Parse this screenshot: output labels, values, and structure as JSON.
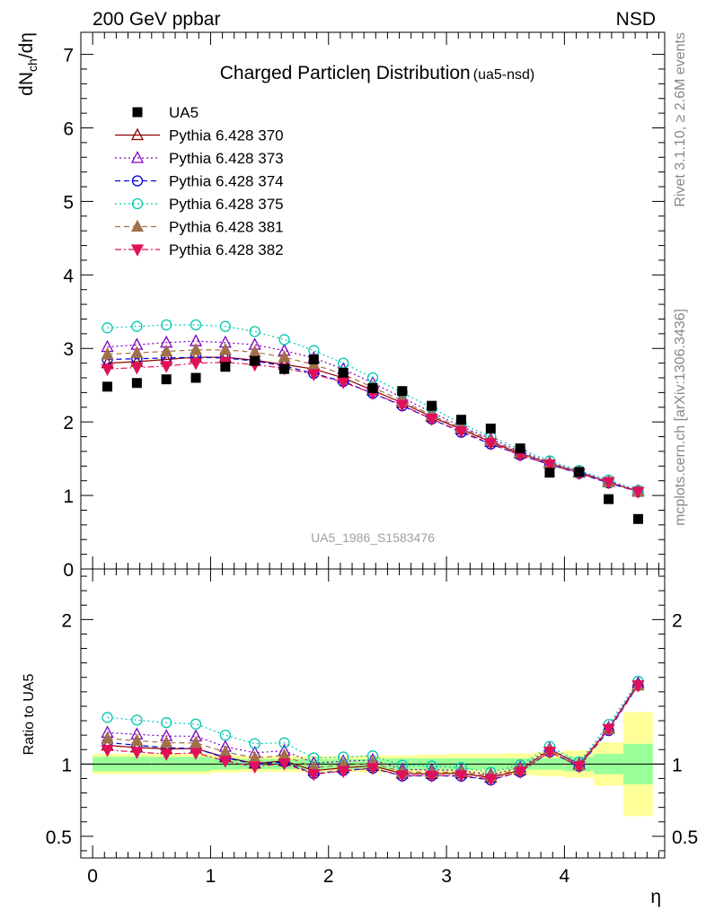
{
  "header": {
    "left": "200 GeV ppbar",
    "right": "NSD"
  },
  "side_labels": {
    "rivet": "Rivet 3.1.10, ≥ 2.6M events",
    "mcplots": "mcplots.cern.ch [arXiv:1306.3436]"
  },
  "chart_data": [
    {
      "type": "scatter",
      "title_main": "Charged Particleη Distribution",
      "title_sub": "(ua5-nsd)",
      "ylabel": "dN",
      "ylabel_sub": "ch",
      "ylabel_rest": "/dη",
      "watermark": "UA5_1986_S1583476",
      "ylim": [
        0,
        7.3
      ],
      "yticks": [
        0,
        1,
        2,
        3,
        4,
        5,
        6,
        7
      ],
      "ytick_labels": [
        "0",
        "1",
        "2",
        "3",
        "4",
        "5",
        "6",
        "7"
      ],
      "legend_position": "top-left",
      "x": [
        0.125,
        0.375,
        0.625,
        0.875,
        1.125,
        1.375,
        1.625,
        1.875,
        2.125,
        2.375,
        2.625,
        2.875,
        3.125,
        3.375,
        3.625,
        3.875,
        4.125,
        4.375,
        4.625
      ],
      "data": {
        "name": "UA5",
        "values": [
          2.48,
          2.53,
          2.58,
          2.6,
          2.75,
          2.83,
          2.72,
          2.85,
          2.67,
          2.46,
          2.42,
          2.22,
          2.03,
          1.91,
          1.64,
          1.31,
          1.32,
          0.95,
          0.68
        ]
      },
      "series": [
        {
          "name": "Pythia 6.428 370",
          "color": "#8b0000",
          "dash": "solid",
          "marker": "triangle-up-open",
          "values": [
            2.8,
            2.82,
            2.85,
            2.88,
            2.88,
            2.84,
            2.78,
            2.72,
            2.6,
            2.43,
            2.26,
            2.07,
            1.9,
            1.73,
            1.57,
            1.44,
            1.32,
            1.18,
            1.06
          ]
        },
        {
          "name": "Pythia 6.428 373",
          "color": "#8000c0",
          "dash": "dotted",
          "marker": "triangle-up-open",
          "values": [
            3.02,
            3.05,
            3.08,
            3.1,
            3.08,
            3.05,
            2.97,
            2.87,
            2.72,
            2.53,
            2.33,
            2.13,
            1.94,
            1.77,
            1.6,
            1.45,
            1.32,
            1.19,
            1.06
          ]
        },
        {
          "name": "Pythia 6.428 374",
          "color": "#0000e0",
          "dash": "dashed",
          "marker": "circle-open",
          "values": [
            2.85,
            2.86,
            2.87,
            2.88,
            2.87,
            2.83,
            2.76,
            2.66,
            2.55,
            2.39,
            2.22,
            2.04,
            1.86,
            1.7,
            1.55,
            1.42,
            1.3,
            1.17,
            1.05
          ]
        },
        {
          "name": "Pythia 6.428 375",
          "color": "#00c8b0",
          "dash": "dotted",
          "marker": "circle-open",
          "values": [
            3.28,
            3.3,
            3.32,
            3.32,
            3.3,
            3.23,
            3.12,
            2.97,
            2.8,
            2.6,
            2.4,
            2.19,
            1.98,
            1.8,
            1.63,
            1.47,
            1.34,
            1.21,
            1.07
          ]
        },
        {
          "name": "Pythia 6.428 381",
          "color": "#a0704a",
          "dash": "dashed",
          "marker": "triangle-up-filled",
          "values": [
            2.92,
            2.94,
            2.96,
            2.98,
            2.98,
            2.95,
            2.88,
            2.78,
            2.65,
            2.47,
            2.29,
            2.09,
            1.92,
            1.75,
            1.58,
            1.44,
            1.31,
            1.18,
            1.05
          ]
        },
        {
          "name": "Pythia 6.428 382",
          "color": "#e0105a",
          "dash": "dashdot",
          "marker": "triangle-down-filled",
          "values": [
            2.72,
            2.74,
            2.76,
            2.8,
            2.81,
            2.78,
            2.73,
            2.65,
            2.54,
            2.39,
            2.23,
            2.04,
            1.87,
            1.71,
            1.55,
            1.42,
            1.3,
            1.18,
            1.05
          ]
        }
      ]
    },
    {
      "type": "scatter",
      "ylabel": "Ratio to UA5",
      "xlabel": "η",
      "xlim": [
        -0.1,
        4.85
      ],
      "xticks": [
        0,
        1,
        2,
        3,
        4
      ],
      "xtick_labels": [
        "0",
        "1",
        "2",
        "3",
        "4"
      ],
      "ylim": [
        0.35,
        2.35
      ],
      "yticks": [
        0.5,
        1,
        2
      ],
      "ytick_labels": [
        "0.5",
        "1",
        "2"
      ],
      "x_edges": [
        0,
        0.25,
        0.5,
        0.75,
        1.0,
        1.25,
        1.5,
        1.75,
        2.0,
        2.25,
        2.5,
        2.75,
        3.0,
        3.25,
        3.5,
        3.75,
        4.0,
        4.25,
        4.5,
        4.75
      ],
      "band_inner": [
        0.05,
        0.05,
        0.05,
        0.05,
        0.04,
        0.035,
        0.035,
        0.035,
        0.035,
        0.035,
        0.04,
        0.04,
        0.04,
        0.04,
        0.04,
        0.04,
        0.05,
        0.07,
        0.14
      ],
      "band_outer": [
        0.07,
        0.07,
        0.07,
        0.07,
        0.06,
        0.055,
        0.055,
        0.055,
        0.055,
        0.06,
        0.06,
        0.065,
        0.07,
        0.07,
        0.075,
        0.085,
        0.095,
        0.15,
        0.36
      ]
    }
  ]
}
